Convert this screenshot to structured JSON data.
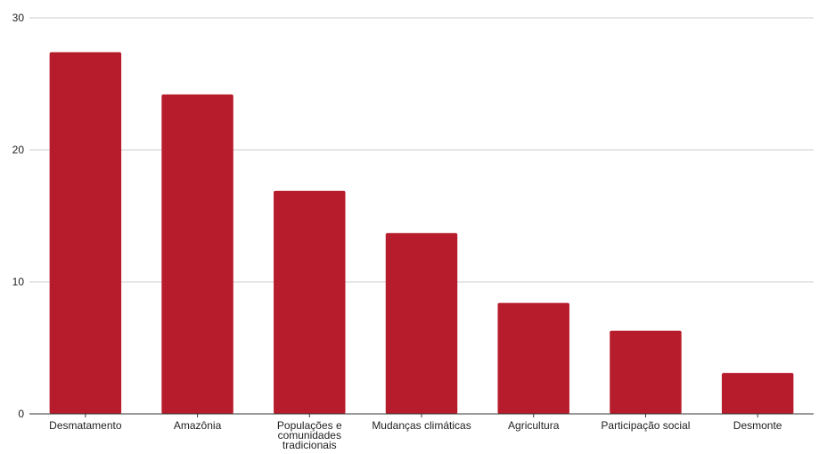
{
  "chart_data": {
    "type": "bar",
    "title": "",
    "xlabel": "",
    "ylabel": "",
    "categories": [
      [
        "Desmatamento"
      ],
      [
        "Amazônia"
      ],
      [
        "Populações e",
        "comunidades",
        "tradicionais"
      ],
      [
        "Mudanças climáticas"
      ],
      [
        "Agricultura"
      ],
      [
        "Participação social"
      ],
      [
        "Desmonte"
      ]
    ],
    "values": [
      27.4,
      24.2,
      16.9,
      13.7,
      8.4,
      6.3,
      3.1
    ],
    "ylim": [
      0,
      30
    ],
    "yticks": [
      0,
      10,
      20,
      30
    ],
    "grid": true,
    "legend": "none",
    "bar_color": "#b71c2c",
    "grid_color": "#cccccc",
    "axis_color": "#333333"
  }
}
